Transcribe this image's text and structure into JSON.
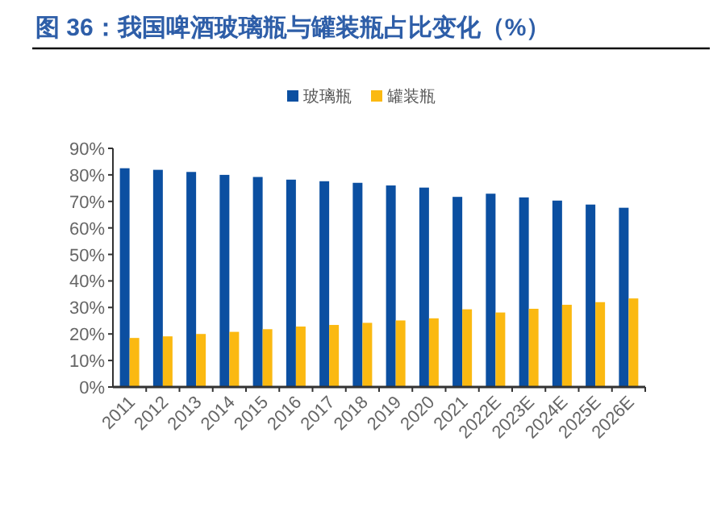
{
  "chart_data": {
    "type": "bar",
    "title": "图 36：我国啤酒玻璃瓶与罐装瓶占比变化（%）",
    "categories": [
      "2011",
      "2012",
      "2013",
      "2014",
      "2015",
      "2016",
      "2017",
      "2018",
      "2019",
      "2020",
      "2021",
      "2022E",
      "2023E",
      "2024E",
      "2025E",
      "2026E"
    ],
    "series": [
      {
        "name": "玻璃瓶",
        "color": "#0b4fa1",
        "values": [
          82.5,
          81.9,
          81.1,
          80.0,
          79.2,
          78.2,
          77.6,
          77.0,
          76.0,
          75.2,
          71.7,
          72.9,
          71.5,
          70.3,
          68.8,
          67.6
        ]
      },
      {
        "name": "罐装瓶",
        "color": "#fbb911",
        "values": [
          18.5,
          19.1,
          20.0,
          20.8,
          21.8,
          22.8,
          23.4,
          24.2,
          25.1,
          25.9,
          29.3,
          28.1,
          29.5,
          31.0,
          32.0,
          33.4
        ]
      }
    ],
    "ylim": [
      0,
      90
    ],
    "yticks": [
      {
        "value": 0,
        "label": "0%"
      },
      {
        "value": 10,
        "label": "10%"
      },
      {
        "value": 20,
        "label": "20%"
      },
      {
        "value": 30,
        "label": "30%"
      },
      {
        "value": 40,
        "label": "40%"
      },
      {
        "value": 50,
        "label": "50%"
      },
      {
        "value": 60,
        "label": "60%"
      },
      {
        "value": 70,
        "label": "70%"
      },
      {
        "value": 80,
        "label": "80%"
      },
      {
        "value": 90,
        "label": "90%"
      }
    ],
    "legend": "top",
    "grid": false
  }
}
